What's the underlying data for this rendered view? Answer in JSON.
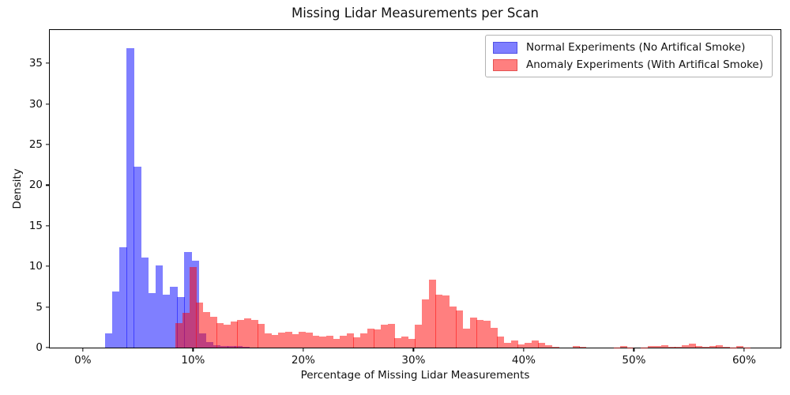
{
  "chart_data": {
    "type": "histogram",
    "title": "Missing Lidar Measurements per Scan",
    "xlabel": "Percentage of Missing Lidar Measurements",
    "ylabel": "Density",
    "grid": false,
    "legend_position": "upper right",
    "xlim": [
      -3.0,
      63.3
    ],
    "ylim": [
      0,
      39.1
    ],
    "x_ticks": [
      {
        "value": 0,
        "label": "0%"
      },
      {
        "value": 10,
        "label": "10%"
      },
      {
        "value": 20,
        "label": "20%"
      },
      {
        "value": 30,
        "label": "30%"
      },
      {
        "value": 40,
        "label": "40%"
      },
      {
        "value": 50,
        "label": "50%"
      },
      {
        "value": 60,
        "label": "60%"
      }
    ],
    "y_ticks": [
      {
        "value": 0,
        "label": "0"
      },
      {
        "value": 5,
        "label": "5"
      },
      {
        "value": 10,
        "label": "10"
      },
      {
        "value": 15,
        "label": "15"
      },
      {
        "value": 20,
        "label": "20"
      },
      {
        "value": 25,
        "label": "25"
      },
      {
        "value": 30,
        "label": "30"
      },
      {
        "value": 35,
        "label": "35"
      }
    ],
    "overlap_displayed_color": "#bf4080",
    "series": [
      {
        "key": "normal",
        "name": "Normal Experiments (No Artifical Smoke)",
        "base_color": "#0000ff",
        "fill_rgba": "rgba(0,0,255,0.5)",
        "displayed_color": "#7f7fff",
        "bin_start_pct": 2.01,
        "bin_width_pct": 0.655,
        "densities": [
          1.8,
          6.9,
          12.4,
          36.9,
          22.3,
          11.1,
          6.7,
          10.1,
          6.5,
          7.5,
          6.2,
          11.8,
          10.7,
          1.8,
          0.7,
          0.3,
          0.2,
          0.15,
          0.15,
          0.1
        ]
      },
      {
        "key": "anomaly",
        "name": "Anomaly Experiments (With Artifical Smoke)",
        "base_color": "#ff0000",
        "fill_rgba": "rgba(255,0,0,0.5)",
        "displayed_color": "#ff7f7f",
        "bin_start_pct": 8.42,
        "bin_width_pct": 0.6207,
        "densities": [
          3.0,
          4.3,
          9.9,
          5.5,
          4.35,
          3.8,
          3.05,
          2.8,
          3.2,
          3.4,
          3.6,
          3.4,
          2.9,
          1.8,
          1.6,
          1.85,
          1.9,
          1.7,
          1.9,
          1.85,
          1.5,
          1.35,
          1.45,
          1.05,
          1.5,
          1.75,
          1.3,
          1.8,
          2.35,
          2.2,
          2.85,
          2.95,
          1.15,
          1.4,
          1.1,
          2.85,
          5.9,
          8.35,
          6.55,
          6.4,
          5.1,
          4.6,
          2.3,
          3.65,
          3.4,
          3.35,
          2.4,
          1.4,
          0.55,
          0.85,
          0.35,
          0.55,
          0.85,
          0.6,
          0.25,
          0.1,
          0,
          0,
          0.2,
          0.1,
          0,
          0,
          0,
          0,
          0.05,
          0.15,
          0.05,
          0,
          0.05,
          0.15,
          0.2,
          0.25,
          0.1,
          0.1,
          0.25,
          0.45,
          0.2,
          0.1,
          0.2,
          0.3,
          0.1,
          0.05,
          0.15,
          0.05
        ]
      }
    ]
  }
}
